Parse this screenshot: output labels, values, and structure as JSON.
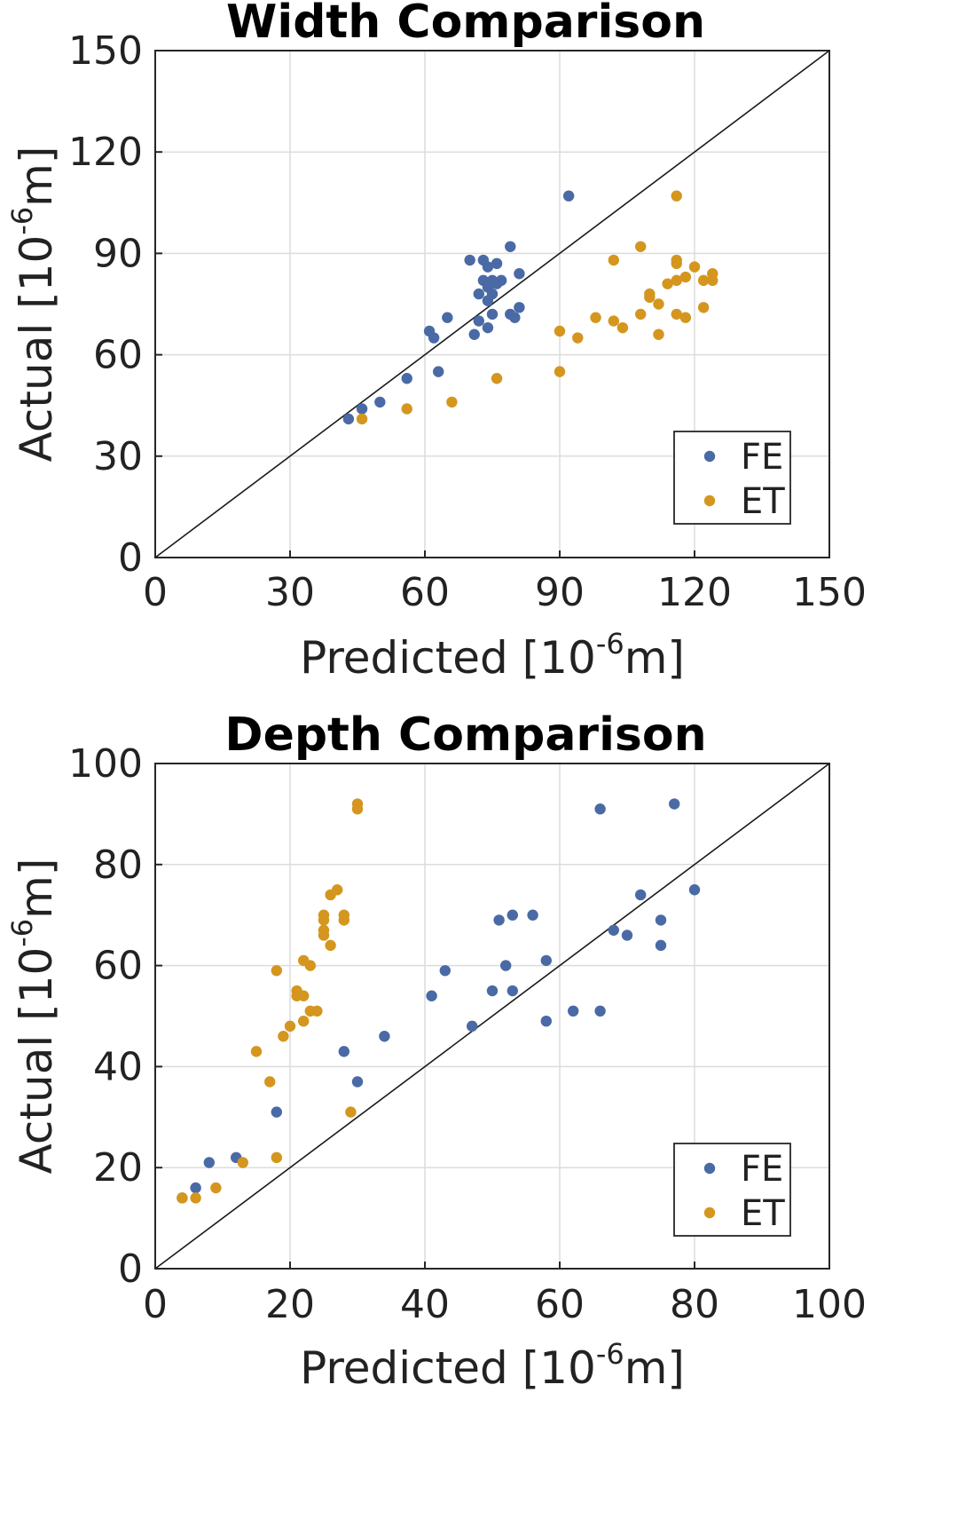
{
  "chart_data": [
    {
      "type": "scatter",
      "title": "Width Comparison",
      "xlabel": {
        "text": "Predicted [10",
        "sup": "-6",
        "tail": "m]"
      },
      "ylabel": {
        "text": "Actual [10",
        "sup": "-6",
        "tail": "m]"
      },
      "xlim": [
        0,
        150
      ],
      "ylim": [
        0,
        150
      ],
      "xticks": [
        0,
        30,
        60,
        90,
        120,
        150
      ],
      "yticks": [
        0,
        30,
        60,
        90,
        120,
        150
      ],
      "grid": true,
      "reference_line": "y = x",
      "legend_position": "bottom-right",
      "series": [
        {
          "name": "FE",
          "color": "#4a6aa5",
          "points": [
            [
              43,
              41
            ],
            [
              46,
              44
            ],
            [
              50,
              46
            ],
            [
              56,
              53
            ],
            [
              61,
              67
            ],
            [
              62,
              65
            ],
            [
              63,
              55
            ],
            [
              65,
              71
            ],
            [
              70,
              88
            ],
            [
              71,
              66
            ],
            [
              72,
              78
            ],
            [
              72,
              70
            ],
            [
              73,
              88
            ],
            [
              73,
              82
            ],
            [
              74,
              86
            ],
            [
              74,
              80
            ],
            [
              74,
              76
            ],
            [
              74,
              68
            ],
            [
              75,
              82
            ],
            [
              75,
              78
            ],
            [
              75,
              72
            ],
            [
              76,
              87
            ],
            [
              76,
              81
            ],
            [
              77,
              82
            ],
            [
              79,
              92
            ],
            [
              79,
              72
            ],
            [
              80,
              71
            ],
            [
              81,
              84
            ],
            [
              81,
              74
            ],
            [
              92,
              107
            ]
          ]
        },
        {
          "name": "ET",
          "color": "#d4961e",
          "points": [
            [
              46,
              41
            ],
            [
              56,
              44
            ],
            [
              66,
              46
            ],
            [
              76,
              53
            ],
            [
              90,
              67
            ],
            [
              90,
              55
            ],
            [
              94,
              65
            ],
            [
              98,
              71
            ],
            [
              102,
              88
            ],
            [
              102,
              70
            ],
            [
              104,
              68
            ],
            [
              108,
              92
            ],
            [
              108,
              72
            ],
            [
              110,
              78
            ],
            [
              110,
              77
            ],
            [
              112,
              75
            ],
            [
              112,
              66
            ],
            [
              114,
              81
            ],
            [
              116,
              107
            ],
            [
              116,
              88
            ],
            [
              116,
              87
            ],
            [
              116,
              82
            ],
            [
              116,
              72
            ],
            [
              118,
              83
            ],
            [
              118,
              71
            ],
            [
              120,
              86
            ],
            [
              122,
              82
            ],
            [
              122,
              74
            ],
            [
              124,
              84
            ],
            [
              124,
              82
            ]
          ]
        }
      ]
    },
    {
      "type": "scatter",
      "title": "Depth Comparison",
      "xlabel": {
        "text": "Predicted [10",
        "sup": "-6",
        "tail": "m]"
      },
      "ylabel": {
        "text": "Actual [10",
        "sup": "-6",
        "tail": "m]"
      },
      "xlim": [
        0,
        100
      ],
      "ylim": [
        0,
        100
      ],
      "xticks": [
        0,
        20,
        40,
        60,
        80,
        100
      ],
      "yticks": [
        0,
        20,
        40,
        60,
        80,
        100
      ],
      "grid": true,
      "reference_line": "y = x",
      "legend_position": "bottom-right",
      "series": [
        {
          "name": "FE",
          "color": "#4a6aa5",
          "points": [
            [
              4,
              14
            ],
            [
              6,
              16
            ],
            [
              8,
              21
            ],
            [
              12,
              22
            ],
            [
              18,
              31
            ],
            [
              28,
              43
            ],
            [
              30,
              37
            ],
            [
              34,
              46
            ],
            [
              41,
              54
            ],
            [
              43,
              59
            ],
            [
              47,
              48
            ],
            [
              50,
              55
            ],
            [
              51,
              69
            ],
            [
              52,
              60
            ],
            [
              53,
              70
            ],
            [
              53,
              55
            ],
            [
              56,
              70
            ],
            [
              58,
              61
            ],
            [
              58,
              49
            ],
            [
              62,
              51
            ],
            [
              66,
              51
            ],
            [
              66,
              91
            ],
            [
              68,
              67
            ],
            [
              70,
              66
            ],
            [
              72,
              74
            ],
            [
              75,
              69
            ],
            [
              75,
              64
            ],
            [
              77,
              92
            ],
            [
              80,
              75
            ]
          ]
        },
        {
          "name": "ET",
          "color": "#d4961e",
          "points": [
            [
              4,
              14
            ],
            [
              6,
              14
            ],
            [
              9,
              16
            ],
            [
              13,
              21
            ],
            [
              15,
              43
            ],
            [
              17,
              37
            ],
            [
              18,
              59
            ],
            [
              18,
              22
            ],
            [
              19,
              46
            ],
            [
              20,
              48
            ],
            [
              21,
              55
            ],
            [
              21,
              54
            ],
            [
              22,
              61
            ],
            [
              22,
              49
            ],
            [
              22,
              54
            ],
            [
              23,
              60
            ],
            [
              23,
              51
            ],
            [
              24,
              51
            ],
            [
              25,
              70
            ],
            [
              25,
              69
            ],
            [
              25,
              67
            ],
            [
              25,
              66
            ],
            [
              26,
              74
            ],
            [
              26,
              64
            ],
            [
              27,
              75
            ],
            [
              28,
              70
            ],
            [
              28,
              69
            ],
            [
              29,
              31
            ],
            [
              30,
              92
            ],
            [
              30,
              91
            ]
          ]
        }
      ]
    }
  ]
}
